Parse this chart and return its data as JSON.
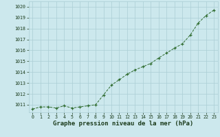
{
  "x": [
    0,
    1,
    2,
    3,
    4,
    5,
    6,
    7,
    8,
    9,
    10,
    11,
    12,
    13,
    14,
    15,
    16,
    17,
    18,
    19,
    20,
    21,
    22,
    23
  ],
  "y": [
    1010.6,
    1010.8,
    1010.8,
    1010.7,
    1010.9,
    1010.7,
    1010.8,
    1010.9,
    1011.0,
    1011.9,
    1012.8,
    1013.3,
    1013.8,
    1014.2,
    1014.5,
    1014.8,
    1015.3,
    1015.75,
    1016.2,
    1016.6,
    1017.4,
    1018.5,
    1019.2,
    1019.7
  ],
  "line_color": "#2d6a2d",
  "marker": "+",
  "bg_color": "#cce8ed",
  "grid_color": "#aacdd4",
  "xlabel": "Graphe pression niveau de la mer (hPa)",
  "xlabel_color": "#1a3a1a",
  "ylabel_ticks": [
    1011,
    1012,
    1013,
    1014,
    1015,
    1016,
    1017,
    1018,
    1019,
    1020
  ],
  "ylim": [
    1010.3,
    1020.5
  ],
  "xlim": [
    -0.5,
    23.5
  ],
  "xticks": [
    0,
    1,
    2,
    3,
    4,
    5,
    6,
    7,
    8,
    9,
    10,
    11,
    12,
    13,
    14,
    15,
    16,
    17,
    18,
    19,
    20,
    21,
    22,
    23
  ],
  "tick_fontsize": 4.8,
  "xlabel_fontsize": 6.5,
  "tick_color": "#1a3a1a"
}
